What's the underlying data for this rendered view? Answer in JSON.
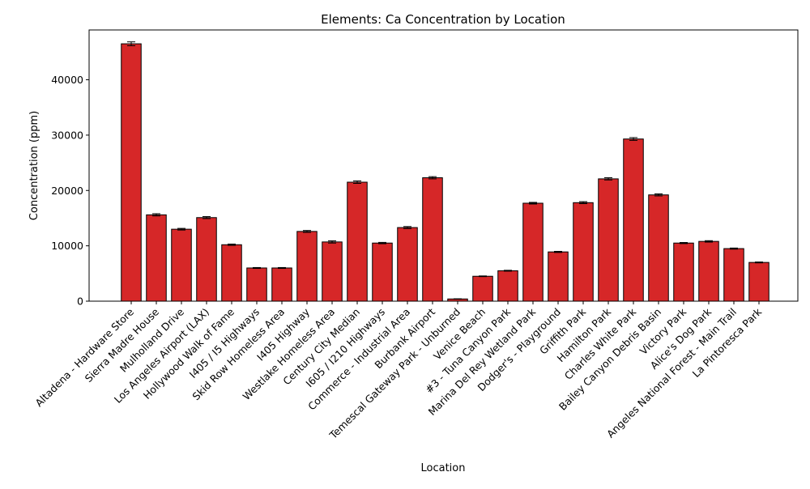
{
  "chart_data": {
    "type": "bar",
    "title": "Elements: Ca Concentration by Location",
    "xlabel": "Location",
    "ylabel": "Concentration (ppm)",
    "ylim": [
      0,
      49000
    ],
    "yticks": [
      0,
      10000,
      20000,
      30000,
      40000
    ],
    "grid": false,
    "legend": "none",
    "bar_color": "#d62728",
    "edge_color": "#000000",
    "categories": [
      "Altadena - Hardware Store",
      "Sierra Madre House",
      "Mulholland Drive",
      "Los Angeles Airport (LAX)",
      "Hollywood Walk of Fame",
      "I405 / I5 Highways",
      "Skid Row Homeless Area",
      "I405 Highway",
      "Westlake Homeless Area",
      "Century City Median",
      "I605 / I210 Highways",
      "Commerce - Industrial Area",
      "Burbank Airport",
      "Temescal Gateway Park - Unburned",
      "Venice Beach",
      "#3 - Tuna Canyon Park",
      "Marina Del Rey Wetland Park",
      "Dodger's - Playground",
      "Griffith Park",
      "Hamilton Park",
      "Charles White Park",
      "Bailey Canyon Debris Basin",
      "Victory Park",
      "Alice's Dog Park",
      "Angeles National Forest - Main Trail",
      "La Pintoresca Park"
    ],
    "values": [
      46500,
      15600,
      13000,
      15100,
      10200,
      6000,
      6000,
      12600,
      10700,
      21500,
      10500,
      13300,
      22300,
      400,
      4500,
      5500,
      17700,
      8900,
      17800,
      22100,
      29300,
      19200,
      10500,
      10800,
      9500,
      7000
    ],
    "errors": [
      350,
      200,
      150,
      180,
      120,
      80,
      80,
      170,
      200,
      220,
      120,
      180,
      200,
      30,
      60,
      80,
      150,
      100,
      180,
      200,
      250,
      180,
      100,
      130,
      100,
      80
    ]
  }
}
